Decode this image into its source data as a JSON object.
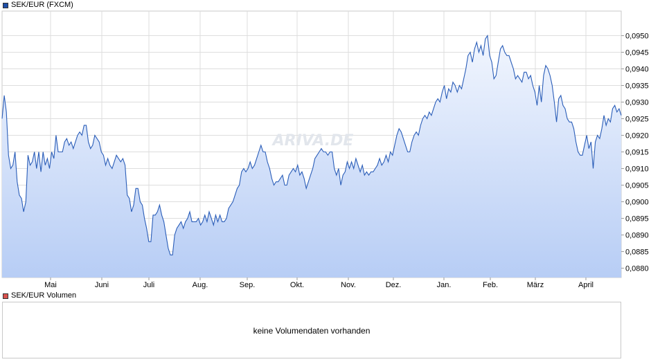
{
  "main_legend": {
    "label": "SEK/EUR (FXCM)",
    "color": "#1f4fa8"
  },
  "volume_legend": {
    "label": "SEK/EUR Volumen",
    "color": "#d9534f"
  },
  "volume_panel": {
    "message": "keine Volumendaten vorhanden"
  },
  "watermark": "ARIVA.DE",
  "chart_data": {
    "type": "area",
    "title": "SEK/EUR (FXCM)",
    "xlabel": "",
    "ylabel": "",
    "x_tick_labels": [
      "Mai",
      "Juni",
      "Juli",
      "Aug.",
      "Sep.",
      "Okt.",
      "Nov.",
      "Dez.",
      "Jan.",
      "Feb.",
      "März",
      "April"
    ],
    "y_tick_labels": [
      "0,0880",
      "0,0885",
      "0,0890",
      "0,0895",
      "0,0900",
      "0,0905",
      "0,0910",
      "0,0915",
      "0,0920",
      "0,0925",
      "0,0930",
      "0,0935",
      "0,0940",
      "0,0945",
      "0,0950"
    ],
    "y_ticks": [
      0.088,
      0.0885,
      0.089,
      0.0895,
      0.09,
      0.0905,
      0.091,
      0.0915,
      0.092,
      0.0925,
      0.093,
      0.0935,
      0.094,
      0.0945,
      0.095
    ],
    "ylim": [
      0.08772,
      0.09574
    ],
    "grid": true,
    "series": [
      {
        "values": [
          0.0925,
          0.0932,
          0.0927,
          0.0914,
          0.091,
          0.0911,
          0.0915,
          0.0906,
          0.0902,
          0.0901,
          0.0897,
          0.09,
          0.0914,
          0.0911,
          0.0912,
          0.0915,
          0.091,
          0.0915,
          0.0909,
          0.0915,
          0.0911,
          0.0913,
          0.091,
          0.0915,
          0.0913,
          0.092,
          0.0915,
          0.0915,
          0.0915,
          0.0918,
          0.0919,
          0.0917,
          0.0918,
          0.0916,
          0.0918,
          0.092,
          0.0921,
          0.092,
          0.0923,
          0.0923,
          0.0918,
          0.0916,
          0.0917,
          0.092,
          0.0919,
          0.0918,
          0.0915,
          0.0914,
          0.0911,
          0.0913,
          0.0911,
          0.091,
          0.0912,
          0.0914,
          0.0913,
          0.0912,
          0.0913,
          0.0911,
          0.0902,
          0.0901,
          0.0897,
          0.0899,
          0.0904,
          0.0904,
          0.09,
          0.0899,
          0.0895,
          0.0892,
          0.0888,
          0.0888,
          0.0896,
          0.0896,
          0.0897,
          0.0899,
          0.0896,
          0.0894,
          0.089,
          0.0886,
          0.0884,
          0.0884,
          0.089,
          0.0892,
          0.0893,
          0.0894,
          0.0892,
          0.0894,
          0.0895,
          0.0897,
          0.0894,
          0.0894,
          0.0894,
          0.0895,
          0.0893,
          0.0894,
          0.0896,
          0.0894,
          0.0897,
          0.0895,
          0.0893,
          0.0896,
          0.0894,
          0.0896,
          0.0894,
          0.0894,
          0.0895,
          0.0898,
          0.0899,
          0.09,
          0.0902,
          0.0904,
          0.0905,
          0.0909,
          0.091,
          0.0909,
          0.091,
          0.0912,
          0.091,
          0.0911,
          0.0913,
          0.0915,
          0.0917,
          0.0915,
          0.0915,
          0.0912,
          0.091,
          0.0907,
          0.0905,
          0.0906,
          0.0906,
          0.0907,
          0.0908,
          0.0905,
          0.0905,
          0.0908,
          0.0909,
          0.091,
          0.0909,
          0.0911,
          0.0908,
          0.0909,
          0.0907,
          0.0904,
          0.0906,
          0.0908,
          0.091,
          0.0913,
          0.0914,
          0.0915,
          0.0916,
          0.0915,
          0.0915,
          0.0914,
          0.0915,
          0.0915,
          0.091,
          0.0908,
          0.091,
          0.0905,
          0.0908,
          0.0909,
          0.0912,
          0.091,
          0.0912,
          0.091,
          0.0913,
          0.0911,
          0.0909,
          0.0911,
          0.0908,
          0.0909,
          0.0908,
          0.0909,
          0.0909,
          0.091,
          0.0911,
          0.0913,
          0.0911,
          0.0912,
          0.0914,
          0.0912,
          0.0915,
          0.0914,
          0.0917,
          0.092,
          0.0922,
          0.0921,
          0.0919,
          0.0917,
          0.0915,
          0.0915,
          0.0918,
          0.092,
          0.0921,
          0.092,
          0.0923,
          0.0925,
          0.0926,
          0.0925,
          0.0927,
          0.0926,
          0.0928,
          0.093,
          0.0931,
          0.093,
          0.0933,
          0.0935,
          0.0931,
          0.0934,
          0.0933,
          0.0936,
          0.0935,
          0.0933,
          0.0935,
          0.0934,
          0.0937,
          0.094,
          0.0944,
          0.0945,
          0.0942,
          0.0946,
          0.0948,
          0.0945,
          0.0947,
          0.0944,
          0.0949,
          0.095,
          0.0944,
          0.0942,
          0.0937,
          0.0938,
          0.0942,
          0.0946,
          0.0947,
          0.0945,
          0.0944,
          0.0944,
          0.0942,
          0.094,
          0.0937,
          0.0938,
          0.0937,
          0.0936,
          0.0939,
          0.0939,
          0.0937,
          0.0938,
          0.0935,
          0.0933,
          0.0929,
          0.0935,
          0.093,
          0.0938,
          0.0941,
          0.094,
          0.0938,
          0.0935,
          0.093,
          0.0924,
          0.0931,
          0.0932,
          0.0929,
          0.0928,
          0.0925,
          0.0924,
          0.0924,
          0.0922,
          0.0918,
          0.0915,
          0.0914,
          0.0914,
          0.0917,
          0.092,
          0.0916,
          0.0918,
          0.091,
          0.0918,
          0.092,
          0.0919,
          0.0922,
          0.0926,
          0.0923,
          0.0925,
          0.0924,
          0.0928,
          0.0929,
          0.0927,
          0.0928,
          0.0926
        ]
      }
    ]
  }
}
